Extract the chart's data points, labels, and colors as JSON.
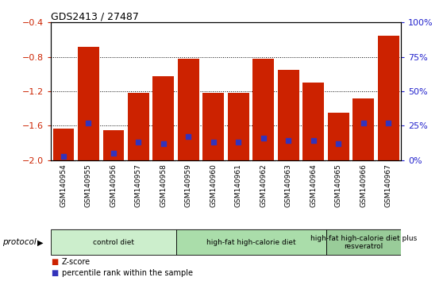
{
  "title": "GDS2413 / 27487",
  "samples": [
    "GSM140954",
    "GSM140955",
    "GSM140956",
    "GSM140957",
    "GSM140958",
    "GSM140959",
    "GSM140960",
    "GSM140961",
    "GSM140962",
    "GSM140963",
    "GSM140964",
    "GSM140965",
    "GSM140966",
    "GSM140967"
  ],
  "zscore": [
    -1.63,
    -0.68,
    -1.65,
    -1.22,
    -1.02,
    -0.82,
    -1.22,
    -1.22,
    -0.82,
    -0.95,
    -1.1,
    -1.45,
    -1.28,
    -0.55
  ],
  "percentile": [
    3,
    27,
    5,
    13,
    12,
    17,
    13,
    13,
    16,
    14,
    14,
    12,
    27,
    27
  ],
  "ylim_left": [
    -2.0,
    -0.4
  ],
  "yticks_left": [
    -2.0,
    -1.6,
    -1.2,
    -0.8,
    -0.4
  ],
  "yticks_right": [
    0,
    25,
    50,
    75,
    100
  ],
  "bar_color": "#cc2200",
  "dot_color": "#3333bb",
  "xtick_bg_color": "#cccccc",
  "plot_bg": "#ffffff",
  "groups": [
    {
      "label": "control diet",
      "start": 0,
      "end": 5,
      "color": "#cceecc"
    },
    {
      "label": "high-fat high-calorie diet",
      "start": 5,
      "end": 11,
      "color": "#aaddaa"
    },
    {
      "label": "high-fat high-calorie diet plus\nresveratrol",
      "start": 11,
      "end": 14,
      "color": "#99cc99"
    }
  ],
  "protocol_label": "protocol",
  "legend_zscore": "Z-score",
  "legend_percentile": "percentile rank within the sample",
  "tick_color_left": "#cc2200",
  "tick_color_right": "#2222cc"
}
